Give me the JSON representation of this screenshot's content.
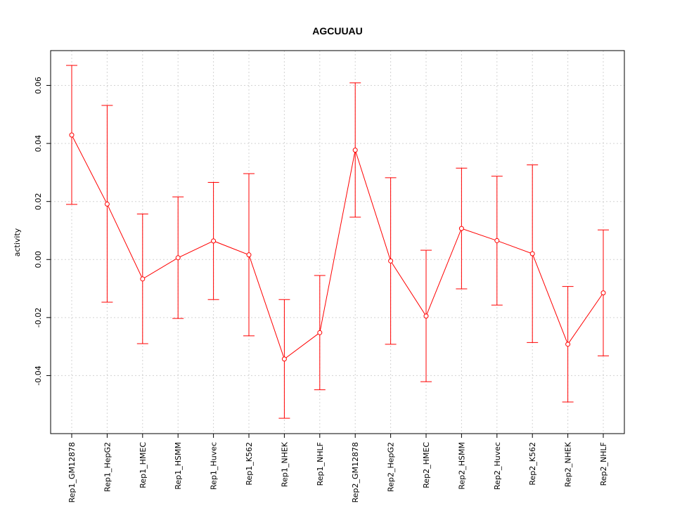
{
  "chart_data": {
    "type": "line",
    "title": "AGCUUAU",
    "xlabel": "",
    "ylabel": "activity",
    "ylim": [
      -0.06,
      0.072
    ],
    "yticks": [
      -0.04,
      -0.02,
      0.0,
      0.02,
      0.04,
      0.06
    ],
    "ytick_labels": [
      "-0.04",
      "-0.02",
      "0.00",
      "0.02",
      "0.04",
      "0.06"
    ],
    "grid": true,
    "categories": [
      "Rep1_GM12878",
      "Rep1_HepG2",
      "Rep1_HMEC",
      "Rep1_HSMM",
      "Rep1_Huvec",
      "Rep1_K562",
      "Rep1_NHEK",
      "Rep1_NHLF",
      "Rep2_GM12878",
      "Rep2_HepG2",
      "Rep2_HMEC",
      "Rep2_HSMM",
      "Rep2_Huvec",
      "Rep2_K562",
      "Rep2_NHEK",
      "Rep2_NHLF"
    ],
    "series": [
      {
        "color": "#ff0000",
        "values": [
          0.0429,
          0.0191,
          -0.0067,
          0.0006,
          0.0064,
          0.0016,
          -0.0343,
          -0.0252,
          0.0377,
          -0.0005,
          -0.0195,
          0.0107,
          0.0065,
          0.002,
          -0.0292,
          -0.0115
        ],
        "upper": [
          0.0669,
          0.0531,
          0.0157,
          0.0216,
          0.0266,
          0.0296,
          -0.0138,
          -0.0055,
          0.0609,
          0.0282,
          0.0032,
          0.0315,
          0.0287,
          0.0326,
          -0.0093,
          0.0102
        ],
        "lower": [
          0.019,
          -0.0147,
          -0.029,
          -0.0203,
          -0.0138,
          -0.0263,
          -0.0547,
          -0.0449,
          0.0146,
          -0.0292,
          -0.0421,
          -0.0101,
          -0.0157,
          -0.0286,
          -0.0491,
          -0.0332
        ]
      }
    ]
  }
}
